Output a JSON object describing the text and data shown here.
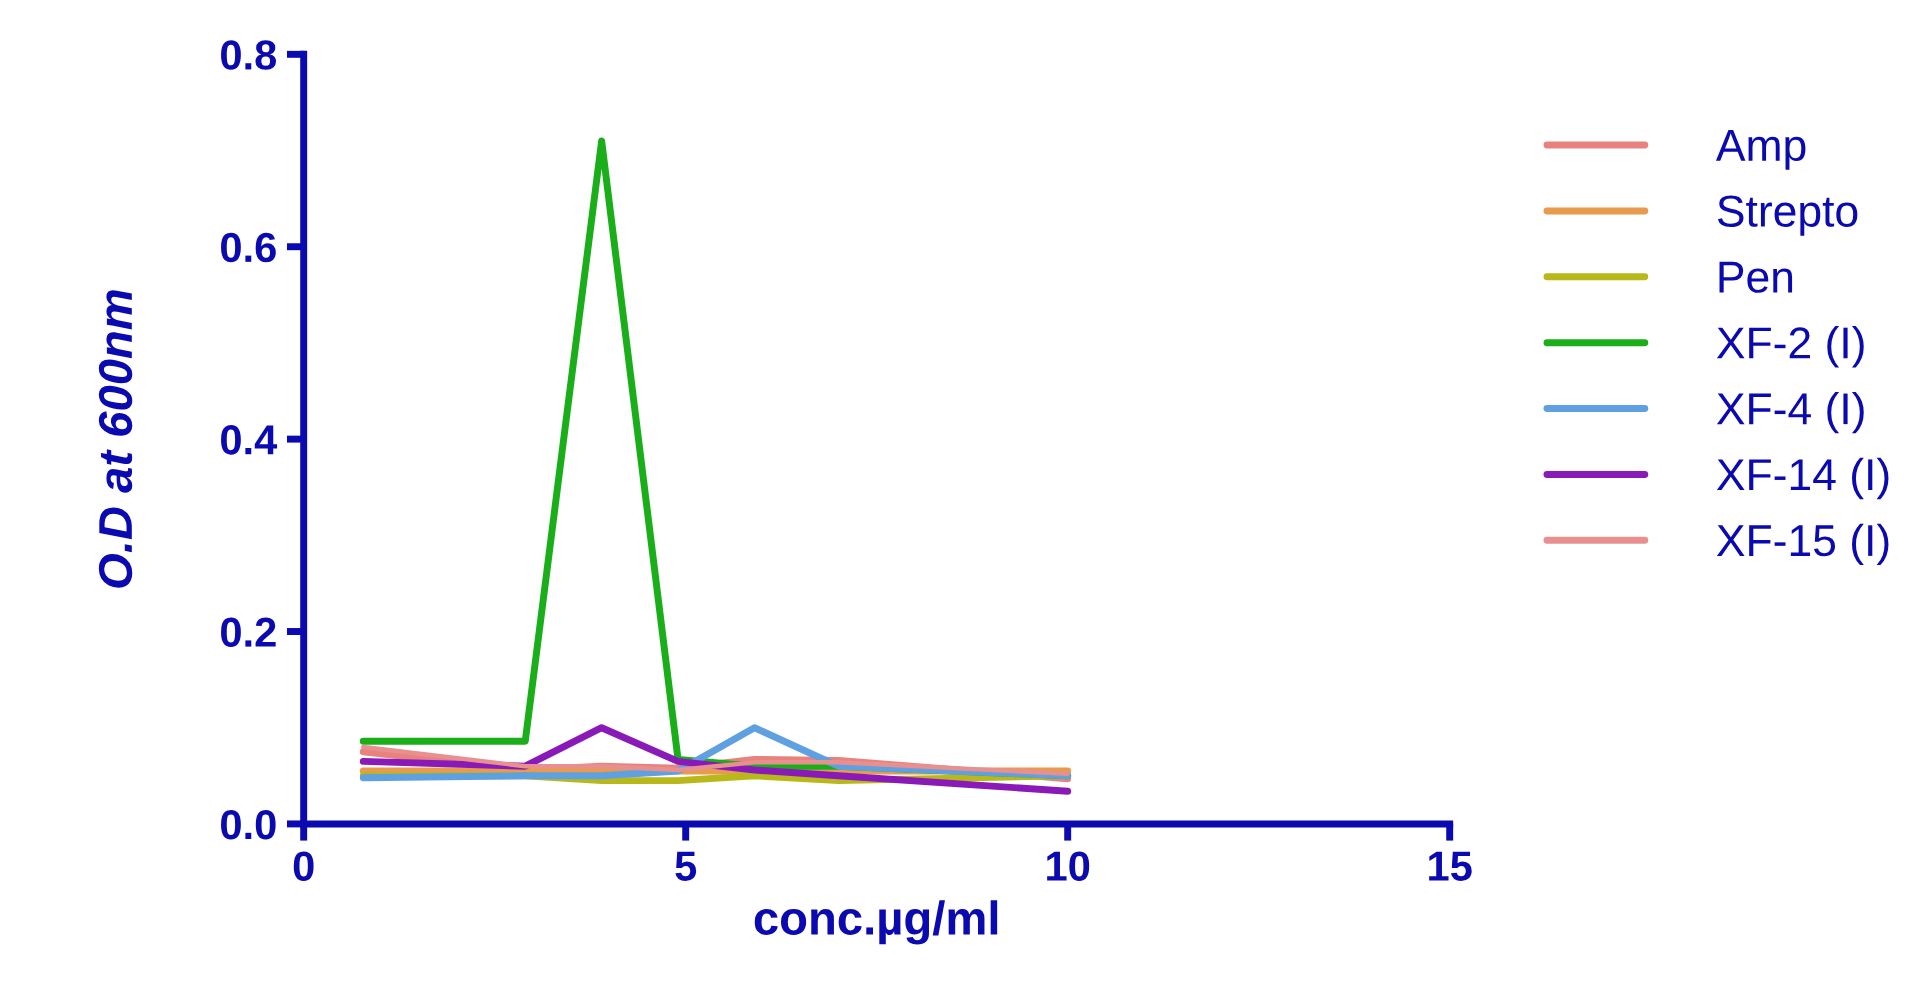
{
  "chart_data": {
    "type": "line",
    "xlabel": "conc.µg/ml",
    "ylabel": "O.D at 600nm",
    "x": [
      0.78,
      2.9,
      3.9,
      4.9,
      5.9,
      7,
      10
    ],
    "series": [
      {
        "name": "Amp",
        "color": "#e8827f",
        "values": [
          0.075,
          0.056,
          0.06,
          0.058,
          0.067,
          0.066,
          0.047
        ]
      },
      {
        "name": "Strepto",
        "color": "#e89a4e",
        "values": [
          0.055,
          0.055,
          0.055,
          0.055,
          0.055,
          0.055,
          0.055
        ]
      },
      {
        "name": "Pen",
        "color": "#b8b81a",
        "values": [
          0.05,
          0.05,
          0.045,
          0.045,
          0.05,
          0.045,
          0.05
        ]
      },
      {
        "name": "XF-2 (I)",
        "color": "#1aaf1a",
        "values": [
          0.086,
          0.086,
          0.71,
          0.067,
          0.06,
          0.06,
          0.05
        ]
      },
      {
        "name": "XF-4 (I)",
        "color": "#5fa0e0",
        "values": [
          0.048,
          0.05,
          0.05,
          0.055,
          0.1,
          0.06,
          0.05
        ]
      },
      {
        "name": "XF-14 (I)",
        "color": "#8a1ab8",
        "values": [
          0.065,
          0.06,
          0.1,
          0.065,
          0.056,
          0.05,
          0.034
        ]
      },
      {
        "name": "XF-15 (I)",
        "color": "#e89090",
        "values": [
          0.08,
          0.06,
          0.06,
          0.056,
          0.064,
          0.064,
          0.052
        ]
      }
    ],
    "xlim": [
      0,
      15
    ],
    "xticks": [
      0,
      5,
      10,
      15
    ],
    "ylim": [
      0,
      0.8
    ],
    "yticks": [
      {
        "value": 0,
        "label": "0.0"
      },
      {
        "value": 0.2,
        "label": "0.2"
      },
      {
        "value": 0.4,
        "label": "0.4"
      },
      {
        "value": 0.6,
        "label": "0.6"
      },
      {
        "value": 0.8,
        "label": "0.8"
      }
    ],
    "legend": "right",
    "grid": false,
    "marker": "none",
    "line_style": "solid"
  }
}
